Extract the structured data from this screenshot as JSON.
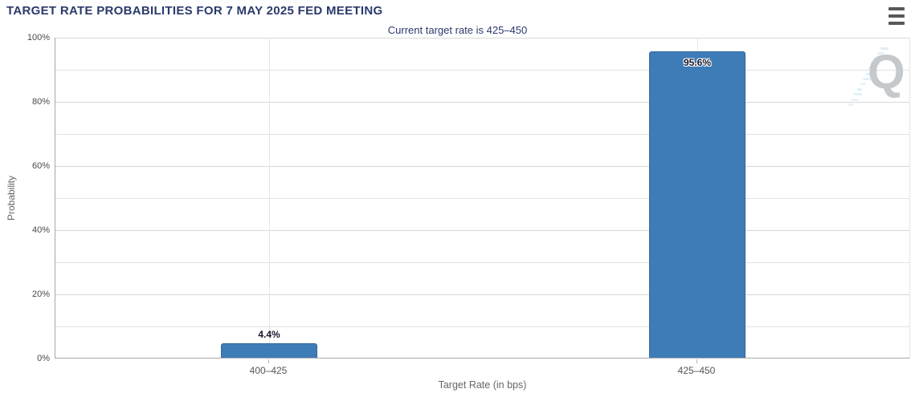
{
  "header": {
    "title": "TARGET RATE PROBABILITIES FOR 7 MAY 2025 FED MEETING",
    "menu_icon": "hamburger-icon"
  },
  "watermark": {
    "letter": "Q"
  },
  "colors": {
    "title_navy": "#2a3a6b",
    "bar_blue": "#3e7cb8",
    "bar_border": "#35689c",
    "gridline": "#e2e2e2",
    "axis_line": "#a8a8a8",
    "watermark_gray": "#c6c9cb",
    "watermark_dash_blue": "#8dc9ec"
  },
  "chart_data": {
    "type": "bar",
    "title": "Current target rate is 425–450",
    "categories": [
      "400–425",
      "425–450"
    ],
    "values": [
      4.4,
      95.6
    ],
    "value_labels": [
      "4.4%",
      "95.6%"
    ],
    "xlabel": "Target Rate (in bps)",
    "ylabel": "Probability",
    "ylim": [
      0,
      100
    ],
    "ytick_labels": [
      "0%",
      "20%",
      "40%",
      "60%",
      "80%",
      "100%"
    ],
    "ytick_values": [
      0,
      20,
      40,
      60,
      80,
      100
    ],
    "minor_grid_step": 10,
    "grid": true,
    "legend": "none",
    "bar_color": "#3e7cb8"
  }
}
